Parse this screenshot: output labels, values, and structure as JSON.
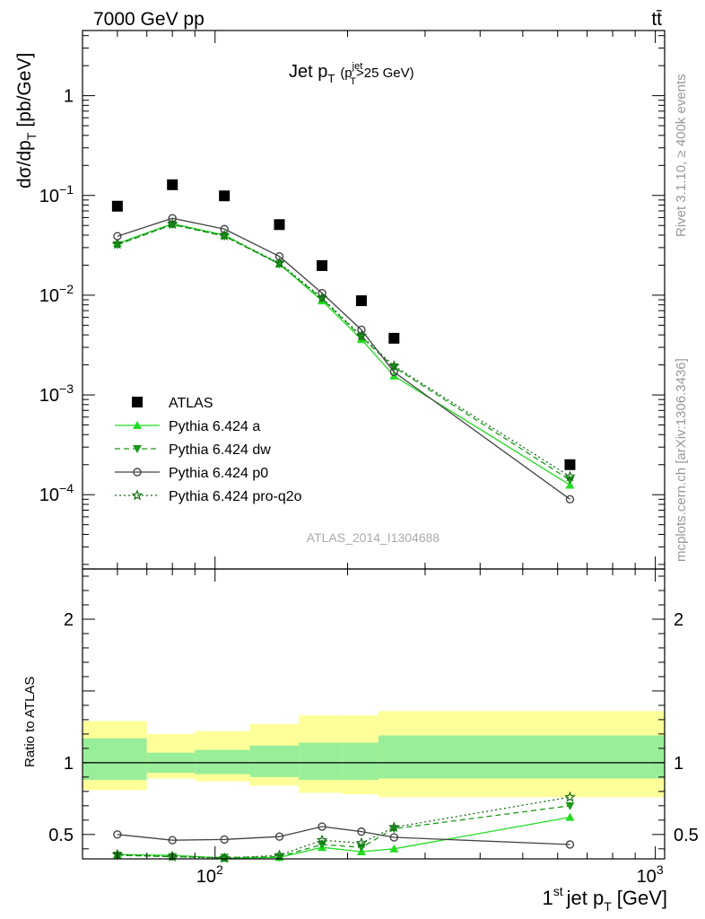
{
  "header": {
    "energy_label": "7000 GeV pp",
    "process_label": "tt̄"
  },
  "side_labels": {
    "rivet": "Rivet 3.1.10, ≥ 400k events",
    "mcplots": "mcplots.cern.ch [arXiv:1306.3436]"
  },
  "colors": {
    "atlas": "#000000",
    "pythia_a": "#22dd22",
    "pythia_dw": "#1a9a1a",
    "pythia_p0": "#444444",
    "pythia_proq2o": "#156e15",
    "band_inner": "#99ee99",
    "band_outer": "#ffff99"
  },
  "chart_data": [
    {
      "type": "scatter",
      "panel": "main",
      "title_main": "Jet p",
      "title_sub_T": "T",
      "title_cut": "(p",
      "title_cut_sup": "jet",
      "title_cut_sub": "T",
      "title_cut_rest": ">25 GeV)",
      "ylabel": "dσ/dp",
      "ylabel_sub": "T",
      "ylabel_unit": "[pb/GeV]",
      "watermark": "ATLAS_2014_I1304688",
      "yscale": "log",
      "xscale": "log",
      "xlim": [
        50,
        1050
      ],
      "ylim": [
        1.8e-05,
        4.5
      ],
      "y_ticks": [
        {
          "v": 1,
          "m": "1",
          "e": ""
        },
        {
          "v": 0.1,
          "m": "10",
          "e": "−1"
        },
        {
          "v": 0.01,
          "m": "10",
          "e": "−2"
        },
        {
          "v": 0.001,
          "m": "10",
          "e": "−3"
        },
        {
          "v": 0.0001,
          "m": "10",
          "e": "−4"
        }
      ],
      "x": [
        60,
        80,
        105,
        140,
        175,
        215,
        255,
        640
      ],
      "x_err": [
        [
          50,
          70
        ],
        [
          70,
          90
        ],
        [
          90,
          120
        ],
        [
          120,
          155
        ],
        [
          155,
          195
        ],
        [
          195,
          235
        ],
        [
          235,
          1050
        ],
        [
          235,
          1050
        ]
      ],
      "series": [
        {
          "name": "ATLAS",
          "key": "atlas",
          "marker": "square",
          "line": "none",
          "values": [
            0.078,
            0.128,
            0.099,
            0.051,
            0.0198,
            0.0088,
            0.0037,
            0.0002
          ]
        },
        {
          "name": "Pythia 6.424 a",
          "key": "pythia_a",
          "marker": "triangle-up",
          "line": "solid",
          "values": [
            0.033,
            0.052,
            0.04,
            0.0205,
            0.0088,
            0.0036,
            0.00155,
            0.000125
          ]
        },
        {
          "name": "Pythia 6.424 dw",
          "key": "pythia_dw",
          "marker": "triangle-down",
          "line": "dashed",
          "values": [
            0.032,
            0.051,
            0.039,
            0.0205,
            0.0092,
            0.0038,
            0.0019,
            0.00014
          ]
        },
        {
          "name": "Pythia 6.424 p0",
          "key": "pythia_p0",
          "marker": "circle-open",
          "line": "solid",
          "values": [
            0.039,
            0.059,
            0.046,
            0.0245,
            0.0105,
            0.0045,
            0.0017,
            9e-05
          ]
        },
        {
          "name": "Pythia 6.424 pro-q2o",
          "key": "pythia_proq2o",
          "marker": "star-open",
          "line": "dotted",
          "values": [
            0.0325,
            0.0515,
            0.0395,
            0.021,
            0.0094,
            0.0039,
            0.00195,
            0.000152
          ]
        }
      ]
    },
    {
      "type": "line",
      "panel": "ratio",
      "ylabel": "Ratio to ATLAS",
      "xlabel_main": "1",
      "xlabel_sup": "st",
      "xlabel_rest": "jet p",
      "xlabel_sub": "T",
      "xlabel_unit": "[GeV]",
      "xscale": "log",
      "xlim": [
        50,
        1050
      ],
      "ylim": [
        0.33,
        2.35
      ],
      "y_ticks": [
        {
          "v": 0.5,
          "t": "0.5"
        },
        {
          "v": 1,
          "t": "1"
        },
        {
          "v": 2,
          "t": "2"
        }
      ],
      "x_ticks": [
        {
          "v": 100,
          "m": "10",
          "e": "2"
        },
        {
          "v": 1000,
          "m": "10",
          "e": "3"
        }
      ],
      "x": [
        60,
        80,
        105,
        140,
        175,
        215,
        255,
        640
      ],
      "bands": [
        {
          "x0": 50,
          "x1": 70,
          "inner": [
            0.88,
            1.17
          ],
          "outer": [
            0.81,
            1.29
          ]
        },
        {
          "x0": 70,
          "x1": 90,
          "inner": [
            0.93,
            1.07
          ],
          "outer": [
            0.89,
            1.2
          ]
        },
        {
          "x0": 90,
          "x1": 120,
          "inner": [
            0.92,
            1.09
          ],
          "outer": [
            0.87,
            1.22
          ]
        },
        {
          "x0": 120,
          "x1": 155,
          "inner": [
            0.9,
            1.12
          ],
          "outer": [
            0.84,
            1.27
          ]
        },
        {
          "x0": 155,
          "x1": 195,
          "inner": [
            0.88,
            1.14
          ],
          "outer": [
            0.79,
            1.33
          ]
        },
        {
          "x0": 195,
          "x1": 235,
          "inner": [
            0.88,
            1.14
          ],
          "outer": [
            0.78,
            1.33
          ]
        },
        {
          "x0": 235,
          "x1": 1050,
          "inner": [
            0.89,
            1.19
          ],
          "outer": [
            0.76,
            1.36
          ]
        }
      ],
      "series": [
        {
          "name": "Pythia 6.424 a",
          "key": "pythia_a",
          "marker": "triangle-up",
          "line": "solid",
          "values": [
            0.36,
            0.355,
            0.335,
            0.34,
            0.41,
            0.38,
            0.4,
            0.62
          ]
        },
        {
          "name": "Pythia 6.424 dw",
          "key": "pythia_dw",
          "marker": "triangle-down",
          "line": "dashed",
          "values": [
            0.355,
            0.345,
            0.34,
            0.345,
            0.43,
            0.41,
            0.54,
            0.7
          ]
        },
        {
          "name": "Pythia 6.424 p0",
          "key": "pythia_p0",
          "marker": "circle-open",
          "line": "solid",
          "values": [
            0.5,
            0.46,
            0.465,
            0.485,
            0.555,
            0.52,
            0.48,
            0.43
          ]
        },
        {
          "name": "Pythia 6.424 pro-q2o",
          "key": "pythia_proq2o",
          "marker": "star-open",
          "line": "dotted",
          "values": [
            0.36,
            0.345,
            0.335,
            0.355,
            0.46,
            0.44,
            0.55,
            0.76
          ]
        }
      ]
    }
  ]
}
